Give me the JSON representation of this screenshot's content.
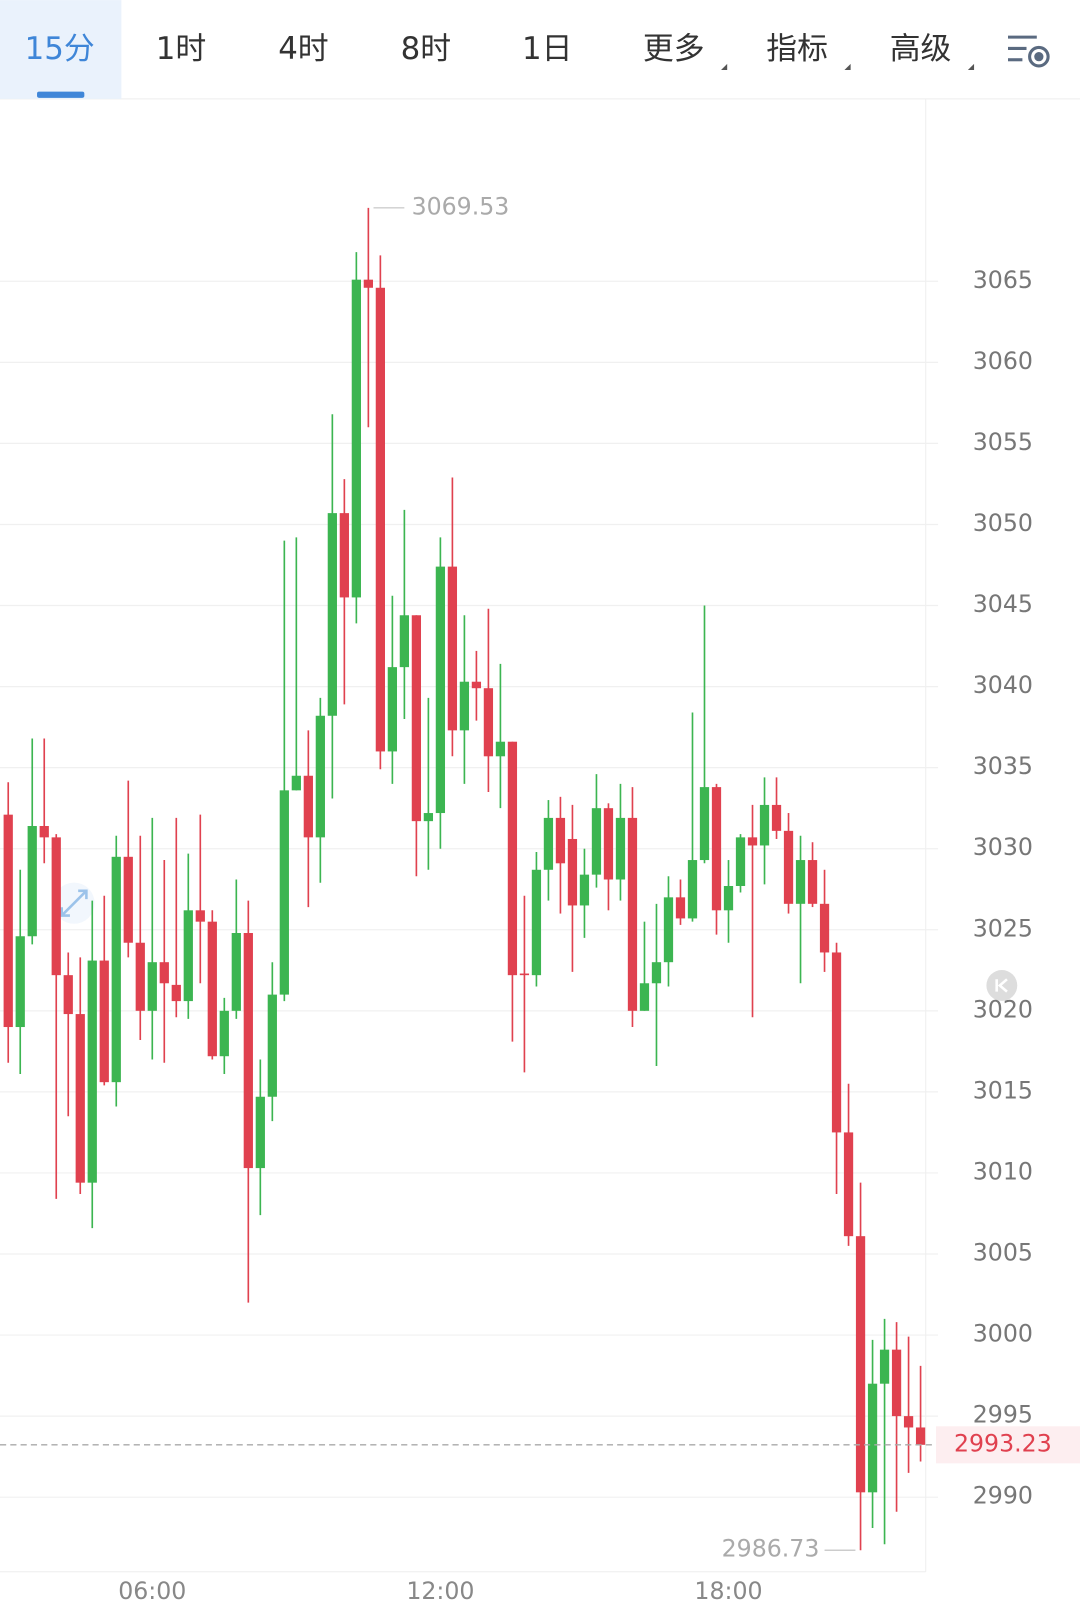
{
  "toolbar": {
    "tabs": [
      "15分",
      "1时",
      "4时",
      "8时",
      "1日",
      "更多",
      "指标",
      "高级"
    ],
    "active": 0
  },
  "chart_data": {
    "type": "candlestick",
    "categories": [
      null,
      null,
      null,
      null,
      null,
      null,
      null,
      null,
      null,
      null,
      null,
      null,
      "06:00",
      null,
      null,
      null,
      null,
      null,
      null,
      null,
      null,
      null,
      null,
      null,
      null,
      null,
      null,
      null,
      null,
      null,
      null,
      null,
      null,
      null,
      null,
      null,
      "12:00",
      null,
      null,
      null,
      null,
      null,
      null,
      null,
      null,
      null,
      null,
      null,
      null,
      null,
      null,
      null,
      null,
      null,
      null,
      null,
      null,
      null,
      null,
      null,
      "18:00",
      null,
      null,
      null,
      null,
      null,
      null,
      null,
      null,
      null,
      null,
      null,
      null,
      null,
      null,
      null,
      null
    ],
    "open": [
      3032.1,
      3019.0,
      3024.6,
      3031.4,
      3030.7,
      3022.2,
      3019.8,
      3009.4,
      3023.1,
      3015.6,
      3029.5,
      3024.2,
      3020.0,
      3023.0,
      3021.6,
      3020.6,
      3026.2,
      3025.5,
      3017.2,
      3020.0,
      3024.8,
      3010.3,
      3014.7,
      3021.0,
      3033.6,
      3034.5,
      3030.7,
      3038.2,
      3050.7,
      3045.5,
      3065.1,
      3064.6,
      3036.0,
      3041.2,
      3044.4,
      3031.7,
      3032.2,
      3047.4,
      3037.3,
      3040.3,
      3039.9,
      3035.7,
      3036.6,
      3022.3,
      3022.2,
      3028.7,
      3031.9,
      3030.6,
      3026.5,
      3028.4,
      3032.5,
      3028.1,
      3031.9,
      3020.0,
      3021.7,
      3023.0,
      3027.0,
      3025.7,
      3029.3,
      3033.8,
      3026.2,
      3027.7,
      3030.7,
      3030.2,
      3032.7,
      3031.1,
      3026.6,
      3029.3,
      3026.6,
      3023.6,
      3012.5,
      3006.1,
      2990.3,
      2997.0,
      2999.1,
      2995.0,
      2994.3
    ],
    "high": [
      3034.1,
      3028.7,
      3036.8,
      3036.8,
      3030.9,
      3023.6,
      3023.3,
      3026.8,
      3027.1,
      3030.8,
      3034.2,
      3030.8,
      3031.9,
      3029.3,
      3031.9,
      3029.7,
      3032.1,
      3026.2,
      3020.8,
      3028.1,
      3026.8,
      3017.0,
      3023.0,
      3049.0,
      3049.2,
      3037.3,
      3039.3,
      3056.8,
      3052.8,
      3066.8,
      3069.53,
      3066.6,
      3045.6,
      3050.9,
      3044.4,
      3039.3,
      3049.2,
      3052.9,
      3044.4,
      3042.2,
      3044.8,
      3041.4,
      3036.6,
      3027.1,
      3029.8,
      3033.0,
      3033.2,
      3032.7,
      3030.0,
      3034.6,
      3032.8,
      3034.0,
      3033.8,
      3025.5,
      3026.6,
      3028.3,
      3028.1,
      3038.4,
      3045.0,
      3034.0,
      3029.3,
      3030.9,
      3032.7,
      3034.4,
      3034.4,
      3032.2,
      3030.8,
      3030.4,
      3028.7,
      3024.2,
      3015.5,
      3009.4,
      2999.7,
      3001.0,
      3000.8,
      2999.9,
      2998.1
    ],
    "low": [
      3016.8,
      3016.1,
      3024.1,
      3029.1,
      3008.4,
      3013.5,
      3008.7,
      3006.6,
      3015.4,
      3014.1,
      3023.3,
      3018.2,
      3017.0,
      3016.8,
      3019.6,
      3019.5,
      3021.7,
      3017.0,
      3016.1,
      3019.5,
      3002.0,
      3007.4,
      3013.2,
      3020.6,
      3033.6,
      3026.4,
      3027.9,
      3033.1,
      3038.9,
      3043.9,
      3056.0,
      3034.9,
      3034.0,
      3038.0,
      3028.3,
      3028.7,
      3030.0,
      3035.7,
      3034.0,
      3037.9,
      3033.5,
      3032.5,
      3018.1,
      3016.2,
      3021.5,
      3026.8,
      3026.0,
      3022.4,
      3024.5,
      3027.6,
      3026.2,
      3026.8,
      3019.0,
      3020.0,
      3016.6,
      3021.5,
      3025.3,
      3025.5,
      3029.1,
      3024.7,
      3024.2,
      3027.3,
      3019.6,
      3027.8,
      3030.6,
      3026.0,
      3021.7,
      3026.4,
      3022.4,
      3008.7,
      3005.5,
      2986.73,
      2988.1,
      2987.1,
      2989.1,
      2991.5,
      2992.2
    ],
    "close": [
      3019.0,
      3024.6,
      3031.4,
      3030.7,
      3022.2,
      3019.8,
      3009.4,
      3023.1,
      3015.6,
      3029.5,
      3024.2,
      3020.0,
      3023.0,
      3021.7,
      3020.6,
      3026.2,
      3025.5,
      3017.2,
      3020.0,
      3024.8,
      3010.3,
      3014.7,
      3021.0,
      3033.6,
      3034.5,
      3030.7,
      3038.2,
      3050.7,
      3045.5,
      3065.1,
      3064.6,
      3036.0,
      3041.2,
      3044.4,
      3031.7,
      3032.2,
      3047.4,
      3037.3,
      3040.3,
      3039.9,
      3035.7,
      3036.6,
      3022.2,
      3022.2,
      3028.7,
      3031.9,
      3029.1,
      3026.5,
      3028.4,
      3032.5,
      3028.1,
      3031.9,
      3020.0,
      3021.7,
      3023.0,
      3027.0,
      3025.7,
      3029.3,
      3033.8,
      3026.2,
      3027.7,
      3030.7,
      3030.2,
      3032.7,
      3031.1,
      3026.6,
      3029.3,
      3026.6,
      3023.6,
      3012.5,
      3006.1,
      2990.3,
      2997.0,
      2999.1,
      2995.0,
      2994.3,
      2993.23
    ],
    "up_color": "#3cb551",
    "down_color": "#e0414f",
    "ylim": [
      2985.4,
      3076.0
    ],
    "yticks": [
      2990,
      2995,
      3000,
      3005,
      3010,
      3015,
      3020,
      3025,
      3030,
      3035,
      3040,
      3045,
      3050,
      3055,
      3060,
      3065
    ],
    "grid": true
  }
}
